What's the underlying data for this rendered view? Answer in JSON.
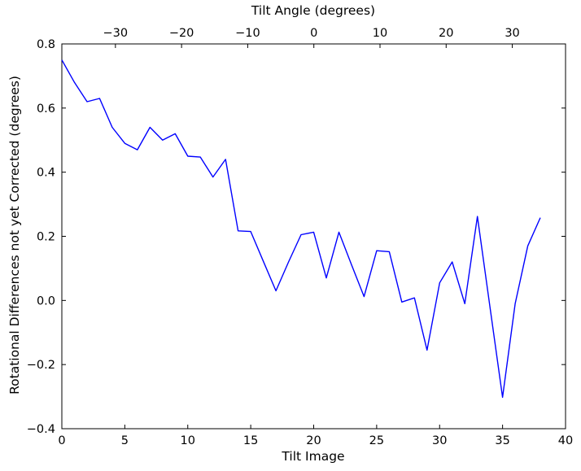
{
  "colors": {
    "line": "#0000ff",
    "axis": "#000000",
    "text": "#000000",
    "background": "#ffffff"
  },
  "chart_data": {
    "type": "line",
    "top_xlabel": "Tilt Angle (degrees)",
    "xlabel": "Tilt Image",
    "ylabel": "Rotational Differences not yet Corrected (degrees)",
    "xlim": [
      0,
      40
    ],
    "ylim": [
      -0.4,
      0.8
    ],
    "top_xlim": [
      -38.1,
      38.05
    ],
    "grid": false,
    "legend": "none",
    "x_ticks": {
      "values": [
        0,
        5,
        10,
        15,
        20,
        25,
        30,
        35,
        40
      ],
      "labels": [
        "0",
        "5",
        "10",
        "15",
        "20",
        "25",
        "30",
        "35",
        "40"
      ]
    },
    "y_ticks": {
      "values": [
        0.8,
        0.6,
        0.4,
        0.2,
        0.0,
        -0.2,
        -0.4
      ],
      "labels": [
        "0.8",
        "0.6",
        "0.4",
        "0.2",
        "0.0",
        "−0.2",
        "−0.4"
      ]
    },
    "top_ticks": {
      "values": [
        -30,
        -20,
        -10,
        0,
        10,
        20,
        30
      ],
      "labels": [
        "−30",
        "−20",
        "−10",
        "0",
        "10",
        "20",
        "30"
      ]
    },
    "series": [
      {
        "name": "rotational_difference",
        "color": "#0000ff",
        "x": [
          0,
          1,
          2,
          3,
          4,
          5,
          6,
          7,
          8,
          9,
          10,
          11,
          12,
          13,
          14,
          15,
          16,
          17,
          18,
          19,
          20,
          21,
          22,
          23,
          24,
          25,
          26,
          27,
          28,
          29,
          30,
          31,
          32,
          33,
          34,
          35,
          36,
          37,
          38
        ],
        "y": [
          0.75,
          0.68,
          0.62,
          0.63,
          0.54,
          0.49,
          0.47,
          0.54,
          0.5,
          0.52,
          0.45,
          0.447,
          0.385,
          0.44,
          0.217,
          0.215,
          0.122,
          0.03,
          0.12,
          0.205,
          0.213,
          0.07,
          0.213,
          0.112,
          0.012,
          0.155,
          0.152,
          -0.005,
          0.008,
          -0.155,
          0.055,
          0.12,
          -0.01,
          0.262,
          -0.02,
          -0.302,
          -0.01,
          0.17,
          0.258
        ]
      }
    ]
  }
}
